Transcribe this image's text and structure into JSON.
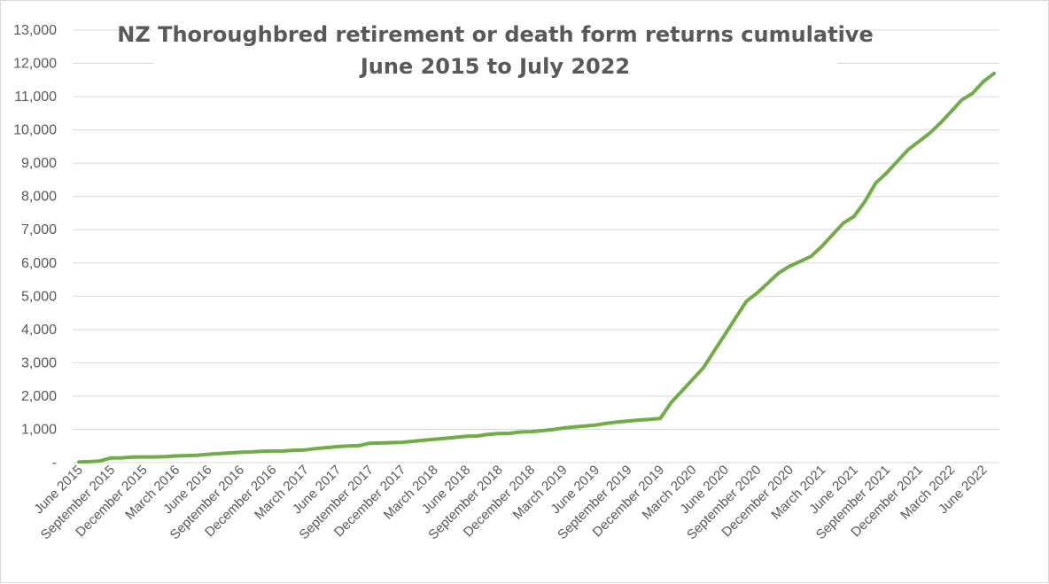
{
  "chart_data": {
    "type": "line",
    "title": "NZ Thoroughbred retirement or death form returns cumulative",
    "subtitle": "June 2015 to July 2022",
    "xlabel": "",
    "ylabel": "",
    "ylim": [
      0,
      13000
    ],
    "grid": true,
    "legend": "none",
    "colors": {
      "line": "#70ad47",
      "grid": "#d9d9d9",
      "text": "#595959"
    },
    "y_ticks": [
      "-",
      "1,000",
      "2,000",
      "3,000",
      "4,000",
      "5,000",
      "6,000",
      "7,000",
      "8,000",
      "9,000",
      "10,000",
      "11,000",
      "12,000",
      "13,000"
    ],
    "x_tick_labels": [
      "June 2015",
      "September 2015",
      "December 2015",
      "March 2016",
      "June 2016",
      "September 2016",
      "December 2016",
      "March 2017",
      "June 2017",
      "September 2017",
      "December 2017",
      "March 2018",
      "June 2018",
      "September 2018",
      "December 2018",
      "March 2019",
      "June 2019",
      "September 2019",
      "December 2019",
      "March 2020",
      "June 2020",
      "September 2020",
      "December 2020",
      "March 2021",
      "June 2021",
      "September 2021",
      "December 2021",
      "March 2022",
      "June 2022"
    ],
    "series": [
      {
        "x": [
          "2015-06",
          "2015-07",
          "2015-08",
          "2015-09",
          "2015-10",
          "2015-11",
          "2015-12",
          "2016-01",
          "2016-02",
          "2016-03",
          "2016-04",
          "2016-05",
          "2016-06",
          "2016-07",
          "2016-08",
          "2016-09",
          "2016-10",
          "2016-11",
          "2016-12",
          "2017-01",
          "2017-02",
          "2017-03",
          "2017-04",
          "2017-05",
          "2017-06",
          "2017-07",
          "2017-08",
          "2017-09",
          "2017-10",
          "2017-11",
          "2017-12",
          "2018-01",
          "2018-02",
          "2018-03",
          "2018-04",
          "2018-05",
          "2018-06",
          "2018-07",
          "2018-08",
          "2018-09",
          "2018-10",
          "2018-11",
          "2018-12",
          "2019-01",
          "2019-02",
          "2019-03",
          "2019-04",
          "2019-05",
          "2019-06",
          "2019-07",
          "2019-08",
          "2019-09",
          "2019-10",
          "2019-11",
          "2019-12",
          "2020-01",
          "2020-02",
          "2020-03",
          "2020-04",
          "2020-05",
          "2020-06",
          "2020-07",
          "2020-08",
          "2020-09",
          "2020-10",
          "2020-11",
          "2020-12",
          "2021-01",
          "2021-02",
          "2021-03",
          "2021-04",
          "2021-05",
          "2021-06",
          "2021-07",
          "2021-08",
          "2021-09",
          "2021-10",
          "2021-11",
          "2021-12",
          "2022-01",
          "2022-02",
          "2022-03",
          "2022-04",
          "2022-05",
          "2022-06",
          "2022-07"
        ],
        "values": [
          20,
          30,
          50,
          140,
          145,
          165,
          170,
          170,
          180,
          200,
          210,
          220,
          250,
          270,
          290,
          310,
          320,
          340,
          345,
          350,
          370,
          380,
          420,
          450,
          480,
          500,
          510,
          580,
          590,
          600,
          610,
          640,
          670,
          700,
          730,
          760,
          790,
          800,
          850,
          870,
          880,
          920,
          930,
          960,
          990,
          1040,
          1070,
          1100,
          1130,
          1180,
          1220,
          1250,
          1280,
          1300,
          1330,
          1800,
          2150,
          2500,
          2850,
          3350,
          3850,
          4350,
          4850,
          5100,
          5400,
          5700,
          5900,
          6050,
          6200,
          6500,
          6850,
          7200,
          7400,
          7850,
          8400,
          8700,
          9050,
          9400,
          9650,
          9900,
          10200,
          10550,
          10900,
          11100,
          11450,
          11700
        ]
      }
    ]
  }
}
